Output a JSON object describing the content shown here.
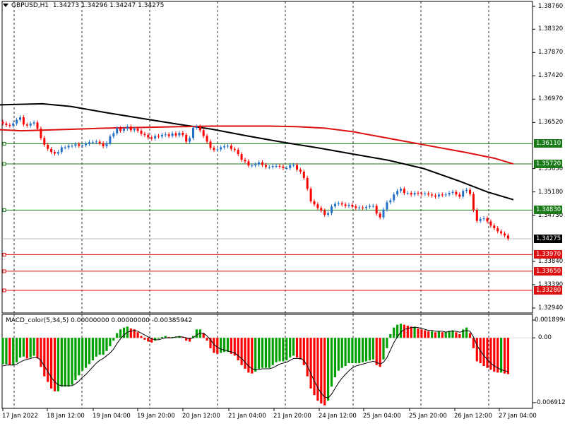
{
  "chart_header": {
    "symbol_timeframe": "GBPUSD,H1",
    "ohlc": "1.34273 1.34296 1.34247 1.34275"
  },
  "macd_header": {
    "label": "MACD_color(5,34,5) 0.00000000 0.00000000 -0.00385942"
  },
  "price_axis": {
    "ticks": [
      "1.38760",
      "1.38320",
      "1.37870",
      "1.37420",
      "1.36970",
      "1.36520",
      "1.35630",
      "1.35180",
      "1.34730",
      "1.33840",
      "1.33390",
      "1.32940"
    ],
    "tick_values": [
      1.3876,
      1.3832,
      1.3787,
      1.3742,
      1.3697,
      1.3652,
      1.3563,
      1.3518,
      1.3473,
      1.3384,
      1.3339,
      1.3294
    ]
  },
  "levels": [
    {
      "label": "1.36110",
      "value": 1.3611,
      "color": "#1a7a1a"
    },
    {
      "label": "1.35720",
      "value": 1.3572,
      "color": "#1a7a1a"
    },
    {
      "label": "1.34830",
      "value": 1.3483,
      "color": "#1a7a1a"
    },
    {
      "label": "1.33970",
      "value": 1.3397,
      "color": "#dd1111"
    },
    {
      "label": "1.33650",
      "value": 1.3365,
      "color": "#dd1111"
    },
    {
      "label": "1.33280",
      "value": 1.3328,
      "color": "#dd1111"
    }
  ],
  "current_price": {
    "label": "1.34275",
    "value": 1.34275
  },
  "macd_axis": {
    "ticks": [
      "0.0018994",
      "0.00",
      "-0.006912"
    ],
    "tick_values": [
      0.0018994,
      0.0,
      -0.006912
    ]
  },
  "time_axis": [
    "17 Jan 2022",
    "18 Jan 12:00",
    "19 Jan 04:00",
    "19 Jan 20:00",
    "20 Jan 12:00",
    "21 Jan 04:00",
    "21 Jan 20:00",
    "24 Jan 12:00",
    "25 Jan 04:00",
    "25 Jan 20:00",
    "26 Jan 12:00",
    "27 Jan 04:00"
  ],
  "colors": {
    "bull": "#2472c8",
    "bear": "#ff0000",
    "ma_fast": "#dd1111",
    "ma_slow": "#000000",
    "macd_up": "#00a000",
    "macd_down": "#ff0000",
    "support": "#1a7a1a",
    "resistance": "#dd1111"
  },
  "chart_data": {
    "type": "candlestick",
    "title": "GBPUSD,H1",
    "ylim": [
      1.3294,
      1.3876
    ],
    "close": [
      1.365,
      1.3647,
      1.3646,
      1.365,
      1.3657,
      1.3662,
      1.3648,
      1.3646,
      1.365,
      1.3652,
      1.364,
      1.3622,
      1.3609,
      1.3601,
      1.3595,
      1.3592,
      1.3595,
      1.3604,
      1.3604,
      1.3607,
      1.3607,
      1.361,
      1.3607,
      1.3608,
      1.3611,
      1.3614,
      1.3614,
      1.3615,
      1.3612,
      1.3606,
      1.3612,
      1.3625,
      1.3631,
      1.3641,
      1.3636,
      1.364,
      1.3644,
      1.3637,
      1.364,
      1.3636,
      1.363,
      1.3628,
      1.3623,
      1.3621,
      1.3626,
      1.3625,
      1.3628,
      1.3629,
      1.3626,
      1.3631,
      1.3627,
      1.3632,
      1.3628,
      1.3615,
      1.3622,
      1.3642,
      1.3644,
      1.3637,
      1.3626,
      1.3615,
      1.3603,
      1.3599,
      1.36,
      1.3604,
      1.3606,
      1.3607,
      1.3601,
      1.3599,
      1.3591,
      1.358,
      1.3577,
      1.3569,
      1.3569,
      1.3571,
      1.3575,
      1.357,
      1.3566,
      1.3566,
      1.3568,
      1.3568,
      1.3567,
      1.3564,
      1.3564,
      1.357,
      1.357,
      1.3561,
      1.3557,
      1.3545,
      1.3524,
      1.35,
      1.3494,
      1.3487,
      1.3482,
      1.3474,
      1.3477,
      1.349,
      1.3495,
      1.3496,
      1.3494,
      1.3491,
      1.3493,
      1.349,
      1.3487,
      1.3488,
      1.3487,
      1.3489,
      1.3491,
      1.3491,
      1.3476,
      1.3469,
      1.3484,
      1.3498,
      1.3502,
      1.3513,
      1.352,
      1.3524,
      1.3516,
      1.3516,
      1.3513,
      1.3516,
      1.3515,
      1.3514,
      1.3515,
      1.3513,
      1.3511,
      1.3509,
      1.3513,
      1.3512,
      1.3513,
      1.3516,
      1.3518,
      1.3513,
      1.3509,
      1.352,
      1.3522,
      1.3514,
      1.3483,
      1.3462,
      1.3466,
      1.3467,
      1.3461,
      1.3453,
      1.3448,
      1.3442,
      1.3438,
      1.3434,
      1.3428
    ]
  },
  "macd_data": {
    "type": "bar",
    "values": [
      -0.0028,
      -0.0028,
      -0.0029,
      -0.0029,
      -0.0026,
      -0.0021,
      -0.002,
      -0.0022,
      -0.0021,
      -0.0019,
      -0.0022,
      -0.0031,
      -0.0041,
      -0.0047,
      -0.0054,
      -0.0057,
      -0.0057,
      -0.0052,
      -0.0052,
      -0.0052,
      -0.005,
      -0.0045,
      -0.004,
      -0.0035,
      -0.0032,
      -0.0028,
      -0.0024,
      -0.002,
      -0.0018,
      -0.0018,
      -0.0014,
      -0.0009,
      -0.0003,
      0.0005,
      0.0009,
      0.0011,
      0.0012,
      0.001,
      0.0009,
      0.0006,
      0.0002,
      -0.0002,
      -0.0004,
      -0.0005,
      -0.0003,
      -0.0001,
      0.0001,
      0.0002,
      0.0001,
      0.0001,
      0.0001,
      0.0002,
      0.0001,
      -0.0003,
      -0.0004,
      0.0002,
      0.0009,
      0.0009,
      0.0005,
      -0.0003,
      -0.0011,
      -0.0016,
      -0.0017,
      -0.0016,
      -0.0015,
      -0.0015,
      -0.0017,
      -0.0019,
      -0.0024,
      -0.0029,
      -0.0033,
      -0.0037,
      -0.0038,
      -0.0036,
      -0.0033,
      -0.0032,
      -0.0032,
      -0.0032,
      -0.0029,
      -0.0026,
      -0.0025,
      -0.0025,
      -0.0024,
      -0.0021,
      -0.0019,
      -0.0021,
      -0.0023,
      -0.0029,
      -0.0041,
      -0.0054,
      -0.0061,
      -0.0067,
      -0.007,
      -0.0072,
      -0.0067,
      -0.0052,
      -0.0042,
      -0.0035,
      -0.0032,
      -0.003,
      -0.0027,
      -0.0027,
      -0.0027,
      -0.0027,
      -0.0026,
      -0.0025,
      -0.0024,
      -0.0023,
      -0.0029,
      -0.0031,
      -0.0023,
      -0.0011,
      0.0004,
      0.0011,
      0.0014,
      0.0015,
      0.0014,
      0.0013,
      0.0012,
      0.0012,
      0.001,
      0.0009,
      0.0008,
      0.0007,
      0.0007,
      0.0006,
      0.0007,
      0.0006,
      0.0006,
      0.0007,
      0.0008,
      0.0006,
      0.0004,
      0.0009,
      0.0011,
      0.0005,
      -0.0011,
      -0.0025,
      -0.0027,
      -0.003,
      -0.0032,
      -0.0034,
      -0.0036,
      -0.0037,
      -0.0037,
      -0.0038,
      -0.00386
    ],
    "signal": [
      -0.003,
      -0.0029,
      -0.0029,
      -0.0029,
      -0.0028,
      -0.0026,
      -0.0024,
      -0.0023,
      -0.0022,
      -0.0021,
      -0.0021,
      -0.0024,
      -0.003,
      -0.0036,
      -0.0042,
      -0.0047,
      -0.005,
      -0.0051,
      -0.0051,
      -0.0051,
      -0.0051,
      -0.0049,
      -0.0046,
      -0.0042,
      -0.0039,
      -0.0035,
      -0.0031,
      -0.0027,
      -0.0024,
      -0.0022,
      -0.0019,
      -0.0016,
      -0.0012,
      -0.0006,
      -0.0001,
      0.0003,
      0.0006,
      0.0007,
      0.0008,
      0.0007,
      0.0005,
      0.0003,
      0.0001,
      -0.0001,
      -0.0002,
      -0.0002,
      -0.0001,
      0.0,
      0.0,
      0.0,
      0.0001,
      0.0001,
      0.0001,
      0.0,
      -0.0001,
      0.0,
      0.0003,
      0.0005,
      0.0005,
      0.0002,
      -0.0002,
      -0.0007,
      -0.001,
      -0.0012,
      -0.0013,
      -0.0014,
      -0.0015,
      -0.0016,
      -0.0019,
      -0.0022,
      -0.0026,
      -0.003,
      -0.0033,
      -0.0034,
      -0.0034,
      -0.0033,
      -0.0033,
      -0.0033,
      -0.0032,
      -0.003,
      -0.0028,
      -0.0027,
      -0.0026,
      -0.0024,
      -0.0022,
      -0.0022,
      -0.0022,
      -0.0024,
      -0.003,
      -0.0038,
      -0.0046,
      -0.0053,
      -0.0059,
      -0.0063,
      -0.0064,
      -0.006,
      -0.0054,
      -0.0048,
      -0.0043,
      -0.0039,
      -0.0035,
      -0.0032,
      -0.003,
      -0.0029,
      -0.0028,
      -0.0027,
      -0.0026,
      -0.0025,
      -0.0026,
      -0.0028,
      -0.0026,
      -0.0021,
      -0.0013,
      -0.0005,
      0.0001,
      0.0006,
      0.0009,
      0.001,
      0.0011,
      0.0011,
      0.0011,
      0.001,
      0.0009,
      0.0008,
      0.0008,
      0.0007,
      0.0007,
      0.0007,
      0.0006,
      0.0007,
      0.0007,
      0.0007,
      0.0006,
      0.0007,
      0.0008,
      0.0007,
      0.0001,
      -0.0008,
      -0.0014,
      -0.0019,
      -0.0023,
      -0.0027,
      -0.003,
      -0.0032,
      -0.0034,
      -0.0035,
      -0.0036
    ],
    "ylim": [
      -0.006912,
      0.0018994
    ]
  },
  "ma_fast": {
    "points": [
      [
        0,
        1.3638
      ],
      [
        30,
        1.3636
      ],
      [
        80,
        1.3638
      ],
      [
        150,
        1.3641
      ],
      [
        220,
        1.3643
      ],
      [
        300,
        1.3645
      ],
      [
        380,
        1.3645
      ],
      [
        420,
        1.3644
      ],
      [
        460,
        1.3641
      ],
      [
        500,
        1.3634
      ],
      [
        540,
        1.3624
      ],
      [
        580,
        1.3614
      ],
      [
        620,
        1.3604
      ],
      [
        660,
        1.3594
      ],
      [
        700,
        1.3583
      ],
      [
        727,
        1.3572
      ]
    ]
  },
  "ma_slow": {
    "points": [
      [
        0,
        1.3686
      ],
      [
        60,
        1.3688
      ],
      [
        100,
        1.3683
      ],
      [
        150,
        1.3671
      ],
      [
        200,
        1.366
      ],
      [
        250,
        1.3649
      ],
      [
        300,
        1.3639
      ],
      [
        350,
        1.3626
      ],
      [
        400,
        1.3614
      ],
      [
        450,
        1.3603
      ],
      [
        500,
        1.3591
      ],
      [
        550,
        1.3579
      ],
      [
        600,
        1.3563
      ],
      [
        650,
        1.3539
      ],
      [
        690,
        1.3518
      ],
      [
        727,
        1.3503
      ]
    ]
  }
}
